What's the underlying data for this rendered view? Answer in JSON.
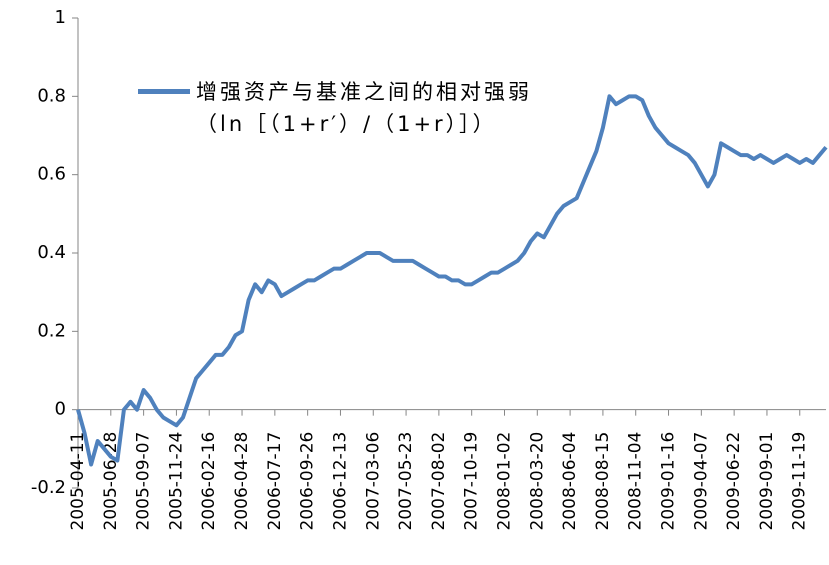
{
  "chart_data": {
    "type": "line",
    "categories": [
      "2005-04-11",
      null,
      null,
      null,
      null,
      "2005-06-28",
      null,
      null,
      null,
      null,
      "2005-09-07",
      null,
      null,
      null,
      null,
      "2005-11-24",
      null,
      null,
      null,
      null,
      "2006-02-16",
      null,
      null,
      null,
      null,
      "2006-04-28",
      null,
      null,
      null,
      null,
      "2006-07-17",
      null,
      null,
      null,
      null,
      "2006-09-26",
      null,
      null,
      null,
      null,
      "2006-12-13",
      null,
      null,
      null,
      null,
      "2007-03-06",
      null,
      null,
      null,
      null,
      "2007-05-23",
      null,
      null,
      null,
      null,
      "2007-08-02",
      null,
      null,
      null,
      null,
      "2007-10-19",
      null,
      null,
      null,
      null,
      "2008-01-02",
      null,
      null,
      null,
      null,
      "2008-03-20",
      null,
      null,
      null,
      null,
      "2008-06-04",
      null,
      null,
      null,
      null,
      "2008-08-15",
      null,
      null,
      null,
      null,
      "2008-11-04",
      null,
      null,
      null,
      null,
      "2009-01-16",
      null,
      null,
      null,
      null,
      "2009-04-07",
      null,
      null,
      null,
      null,
      "2009-06-22",
      null,
      null,
      null,
      null,
      "2009-09-01",
      null,
      null,
      null,
      null,
      "2009-11-19",
      null,
      null,
      null,
      null
    ],
    "series": [
      {
        "name": "增强资产与基准之间的相对强弱（ln［（1+r′）/（1+r）］）",
        "color": "#4f81bd",
        "values": [
          0.0,
          -0.06,
          -0.14,
          -0.08,
          -0.1,
          -0.12,
          -0.13,
          0.0,
          0.02,
          0.0,
          0.05,
          0.03,
          0.0,
          -0.02,
          -0.03,
          -0.04,
          -0.02,
          0.03,
          0.08,
          0.1,
          0.12,
          0.14,
          0.14,
          0.16,
          0.19,
          0.2,
          0.28,
          0.32,
          0.3,
          0.33,
          0.32,
          0.29,
          0.3,
          0.31,
          0.32,
          0.33,
          0.33,
          0.34,
          0.35,
          0.36,
          0.36,
          0.37,
          0.38,
          0.39,
          0.4,
          0.4,
          0.4,
          0.39,
          0.38,
          0.38,
          0.38,
          0.38,
          0.37,
          0.36,
          0.35,
          0.34,
          0.34,
          0.33,
          0.33,
          0.32,
          0.32,
          0.33,
          0.34,
          0.35,
          0.35,
          0.36,
          0.37,
          0.38,
          0.4,
          0.43,
          0.45,
          0.44,
          0.47,
          0.5,
          0.52,
          0.53,
          0.54,
          0.58,
          0.62,
          0.66,
          0.72,
          0.8,
          0.78,
          0.79,
          0.8,
          0.8,
          0.79,
          0.75,
          0.72,
          0.7,
          0.68,
          0.67,
          0.66,
          0.65,
          0.63,
          0.6,
          0.57,
          0.6,
          0.68,
          0.67,
          0.66,
          0.65,
          0.65,
          0.64,
          0.65,
          0.64,
          0.63,
          0.64,
          0.65,
          0.64,
          0.63,
          0.64,
          0.63,
          0.65,
          0.67
        ]
      }
    ],
    "ylim": [
      -0.2,
      1
    ],
    "yticks": [
      -0.2,
      0,
      0.2,
      0.4,
      0.6,
      0.8,
      1
    ],
    "grid": false,
    "legend": "top-left"
  }
}
